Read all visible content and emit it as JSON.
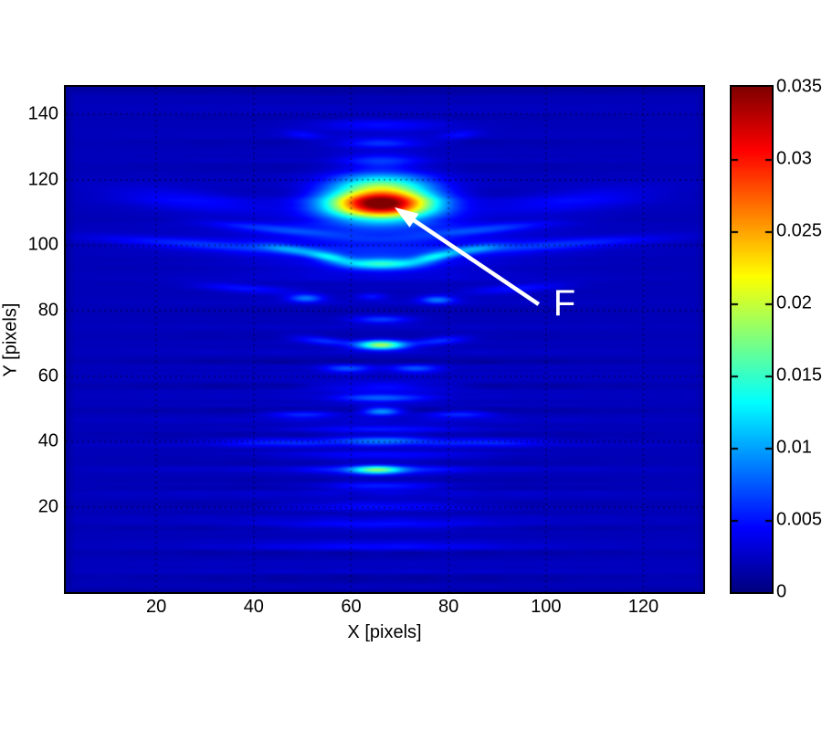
{
  "chart_data": {
    "type": "heatmap",
    "xlabel": "X [pixels]",
    "ylabel": "Y [pixels]",
    "x_ticks": [
      20,
      40,
      60,
      80,
      100,
      120
    ],
    "y_ticks": [
      20,
      40,
      60,
      80,
      100,
      120,
      140
    ],
    "x_range": [
      1.4,
      132.3
    ],
    "y_range": [
      -5.9,
      148.4
    ],
    "grid": "dotted-black",
    "colormap": "jet",
    "plot_bg_hex": "#0000ad",
    "colorbar": {
      "min": 0,
      "max": 0.035,
      "ticks": [
        {
          "value": 0.035,
          "label": "0.035"
        },
        {
          "value": 0.03,
          "label": "0.03"
        },
        {
          "value": 0.025,
          "label": "0.025"
        },
        {
          "value": 0.02,
          "label": "0.02"
        },
        {
          "value": 0.015,
          "label": "0.015"
        },
        {
          "value": 0.01,
          "label": "0.01"
        },
        {
          "value": 0.005,
          "label": "0.005"
        },
        {
          "value": 0,
          "label": "0"
        }
      ]
    },
    "background_value": 0.002,
    "noise_amp": 0.00055,
    "focus_peak": {
      "x": 66,
      "y": 113,
      "value": 0.035
    },
    "blobs": [
      [
        66,
        113,
        10.5,
        4.6,
        0.0345,
        0
      ],
      [
        66,
        119.5,
        10,
        3.5,
        0.009,
        0
      ],
      [
        66,
        126,
        8,
        2.2,
        0.004,
        0
      ],
      [
        66,
        131.5,
        9,
        1.5,
        0.0045,
        0
      ],
      [
        66,
        137,
        13,
        1.8,
        0.0028,
        0
      ],
      [
        50,
        134,
        4,
        1.2,
        0.0025,
        -8
      ],
      [
        82,
        134,
        4,
        1.2,
        0.0025,
        8
      ],
      [
        66,
        101,
        26,
        9,
        0.0035,
        0
      ],
      [
        66,
        94.5,
        8,
        1.7,
        0.011,
        0
      ],
      [
        55.5,
        96.5,
        4.5,
        1.3,
        0.008,
        -14
      ],
      [
        76.5,
        96.5,
        4.5,
        1.3,
        0.008,
        14
      ],
      [
        47,
        99,
        6,
        1.3,
        0.0045,
        -12
      ],
      [
        85,
        99,
        6,
        1.3,
        0.0045,
        12
      ],
      [
        29,
        100.5,
        21,
        1.6,
        0.004,
        -5
      ],
      [
        103,
        100.5,
        21,
        1.6,
        0.004,
        5
      ],
      [
        26,
        114,
        16,
        3.2,
        0.0025,
        -8
      ],
      [
        106,
        114,
        16,
        3.2,
        0.0025,
        8
      ],
      [
        45,
        105,
        14,
        1.3,
        0.0035,
        -8
      ],
      [
        87,
        105,
        14,
        1.3,
        0.0035,
        8
      ],
      [
        50.5,
        84,
        3.5,
        1.2,
        0.0065,
        0
      ],
      [
        77.5,
        83.5,
        3.5,
        1.2,
        0.0065,
        0
      ],
      [
        64,
        84.5,
        3,
        1,
        0.003,
        0
      ],
      [
        38,
        87,
        10,
        1.3,
        0.003,
        -6
      ],
      [
        94,
        87,
        10,
        1.3,
        0.003,
        6
      ],
      [
        66,
        77.5,
        6,
        1.2,
        0.0045,
        0
      ],
      [
        66,
        69.7,
        4.8,
        1.35,
        0.017,
        0
      ],
      [
        54,
        71,
        6,
        1.2,
        0.004,
        -8
      ],
      [
        78,
        71,
        6,
        1.2,
        0.004,
        8
      ],
      [
        59,
        62.5,
        5,
        1.2,
        0.005,
        0
      ],
      [
        73,
        62.5,
        5,
        1.2,
        0.005,
        0
      ],
      [
        66,
        57,
        14,
        1.4,
        0.0035,
        0
      ],
      [
        66,
        53.5,
        9,
        1.3,
        0.0055,
        0
      ],
      [
        66,
        49.4,
        4,
        1.2,
        0.0085,
        0
      ],
      [
        50,
        48.5,
        7,
        1.1,
        0.004,
        0
      ],
      [
        82,
        48.5,
        7,
        1.1,
        0.004,
        0
      ],
      [
        66,
        44,
        16,
        1.3,
        0.003,
        0
      ],
      [
        66,
        40.5,
        10,
        1.3,
        0.0065,
        0
      ],
      [
        45,
        40,
        12,
        1.2,
        0.0035,
        0
      ],
      [
        87,
        40,
        12,
        1.2,
        0.0035,
        0
      ],
      [
        66,
        36,
        20,
        1.4,
        0.0028,
        0
      ],
      [
        65,
        31.5,
        5,
        1.3,
        0.011,
        0
      ],
      [
        66,
        31.5,
        14,
        1.4,
        0.004,
        0
      ],
      [
        66,
        26.5,
        12,
        1.3,
        0.0038,
        0
      ],
      [
        66,
        20.5,
        18,
        1.4,
        0.0032,
        0
      ],
      [
        66,
        14.5,
        22,
        1.5,
        0.0028,
        0
      ],
      [
        66,
        8,
        25,
        1.5,
        0.002,
        0
      ]
    ],
    "annotation": {
      "label": "F",
      "color": "#ffffff",
      "tip": [
        68.9,
        111.6
      ],
      "tail": [
        98.5,
        82.0
      ],
      "label_pos": [
        103.8,
        82.3
      ]
    }
  }
}
